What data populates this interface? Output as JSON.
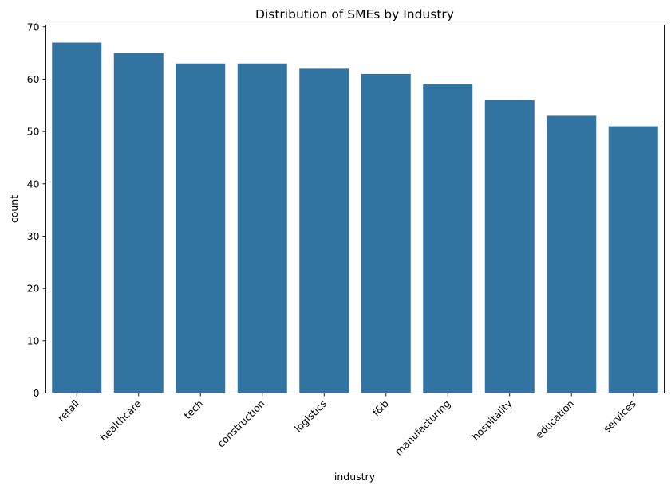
{
  "chart_data": {
    "type": "bar",
    "title": "Distribution of SMEs by Industry",
    "xlabel": "industry",
    "ylabel": "count",
    "categories": [
      "retail",
      "healthcare",
      "tech",
      "construction",
      "logistics",
      "f&b",
      "manufacturing",
      "hospitality",
      "education",
      "services"
    ],
    "values": [
      67,
      65,
      63,
      63,
      62,
      61,
      59,
      56,
      53,
      51
    ],
    "ylim": [
      0,
      70.35
    ],
    "yticks": [
      0,
      10,
      20,
      30,
      40,
      50,
      60,
      70
    ],
    "grid": false,
    "bar_color": "#3274a1",
    "xtick_rotation_deg": 45
  }
}
